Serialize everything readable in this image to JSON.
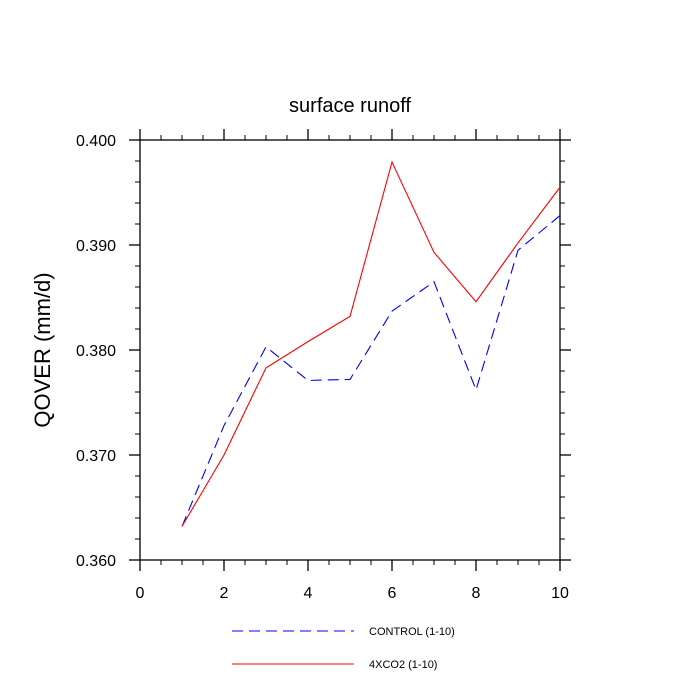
{
  "chart_data": {
    "type": "line",
    "title": "surface runoff",
    "xlabel": "",
    "ylabel": "QOVER  (mm/d)",
    "xlim": [
      0,
      10
    ],
    "ylim": [
      0.36,
      0.4
    ],
    "grid": false,
    "legend_position": "bottom",
    "x_ticks": [
      {
        "value": 0,
        "label": "0"
      },
      {
        "value": 2,
        "label": "2"
      },
      {
        "value": 4,
        "label": "4"
      },
      {
        "value": 6,
        "label": "6"
      },
      {
        "value": 8,
        "label": "8"
      },
      {
        "value": 10,
        "label": "10"
      }
    ],
    "y_ticks": [
      {
        "value": 0.36,
        "label": "0.360"
      },
      {
        "value": 0.37,
        "label": "0.370"
      },
      {
        "value": 0.38,
        "label": "0.380"
      },
      {
        "value": 0.39,
        "label": "0.390"
      },
      {
        "value": 0.4,
        "label": "0.400"
      }
    ],
    "x_minor_step": 0.5,
    "y_minor_step": 0.002,
    "series": [
      {
        "name": "CONTROL (1-10)",
        "color": "#0000ff",
        "dash": "dashed",
        "x": [
          1,
          2,
          3,
          4,
          5,
          6,
          7,
          8,
          9,
          10
        ],
        "values": [
          0.3632,
          0.3728,
          0.3803,
          0.3771,
          0.3772,
          0.3837,
          0.3865,
          0.3762,
          0.3895,
          0.3928
        ]
      },
      {
        "name": "4XCO2 (1-10)",
        "color": "#ff0000",
        "dash": "solid",
        "x": [
          1,
          2,
          3,
          4,
          5,
          6,
          7,
          8,
          9,
          10
        ],
        "values": [
          0.3632,
          0.37,
          0.3783,
          0.3808,
          0.3832,
          0.3979,
          0.3893,
          0.3846,
          0.3902,
          0.3955
        ]
      }
    ]
  }
}
